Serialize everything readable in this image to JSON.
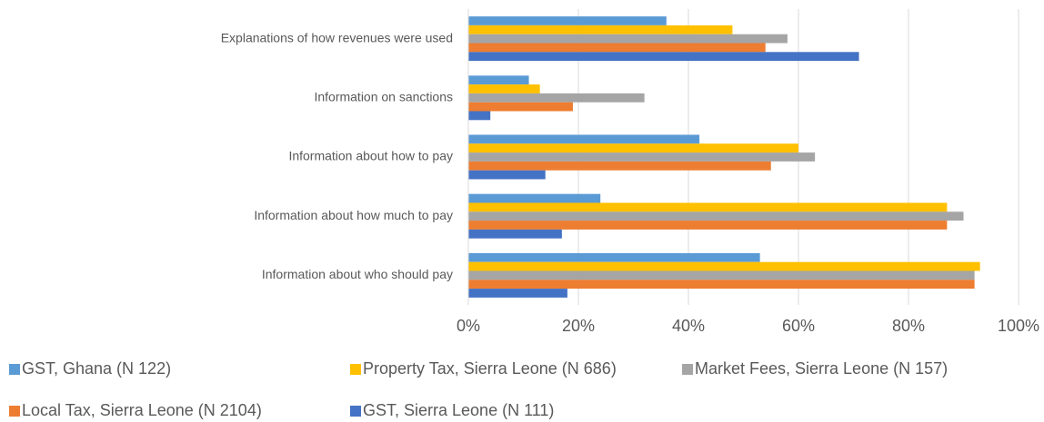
{
  "chart_data": {
    "type": "hbar",
    "categories": [
      "Explanations of how revenues were used",
      "Information on sanctions",
      "Information about how to pay",
      "Information about how much to pay",
      "Information about who should pay"
    ],
    "series": [
      {
        "name": "GST, Ghana (N 122)",
        "color": "#5b9bd5",
        "values": [
          36,
          11,
          42,
          24,
          53
        ]
      },
      {
        "name": "Property Tax, Sierra Leone (N 686)",
        "color": "#ffc000",
        "values": [
          48,
          13,
          60,
          87,
          93
        ]
      },
      {
        "name": "Market Fees, Sierra Leone (N 157)",
        "color": "#a5a5a5",
        "values": [
          58,
          32,
          63,
          90,
          92
        ]
      },
      {
        "name": "Local Tax, Sierra Leone (N 2104)",
        "color": "#ed7d31",
        "values": [
          54,
          19,
          55,
          87,
          92
        ]
      },
      {
        "name": "GST, Sierra Leone (N 111)",
        "color": "#4472c4",
        "values": [
          71,
          4,
          14,
          17,
          18
        ]
      }
    ],
    "xlim": [
      0,
      100
    ],
    "xticks": [
      {
        "value": 0,
        "label": "0%"
      },
      {
        "value": 20,
        "label": "20%"
      },
      {
        "value": 40,
        "label": "40%"
      },
      {
        "value": 60,
        "label": "60%"
      },
      {
        "value": 80,
        "label": "80%"
      },
      {
        "value": 100,
        "label": "100%"
      }
    ],
    "grid": true,
    "legend": "bottom"
  }
}
